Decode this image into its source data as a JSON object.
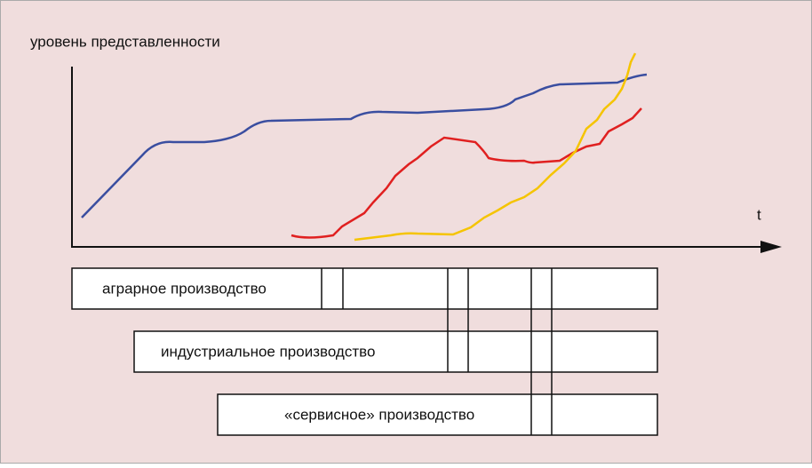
{
  "axis": {
    "y_label": "уровень представленности",
    "x_label": "t"
  },
  "phases": [
    {
      "label": "аграрное производство"
    },
    {
      "label": "индустриальное производство"
    },
    {
      "label": "«сервисное» производство"
    }
  ]
}
